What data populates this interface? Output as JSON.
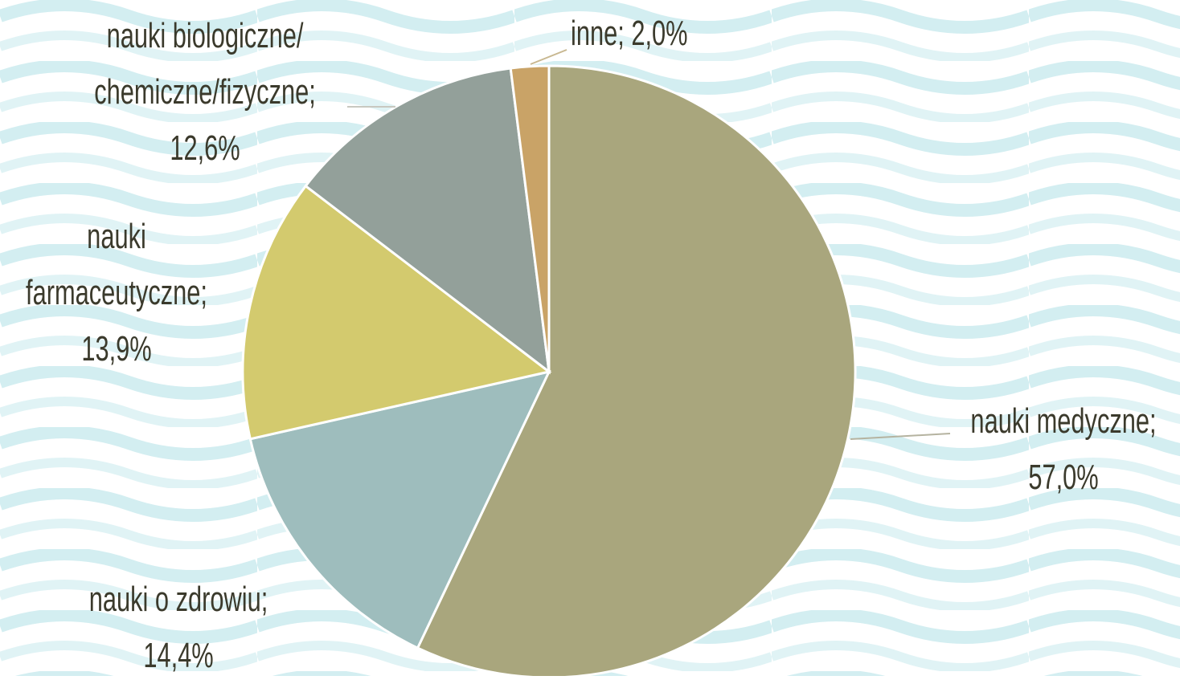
{
  "chart_data": {
    "type": "pie",
    "categories": [
      "nauki medyczne;",
      "nauki o zdrowiu;",
      "nauki farmaceutyczne;",
      "nauki biologiczne/ chemiczne/fizyczne;",
      "inne;"
    ],
    "values": [
      57.0,
      14.4,
      13.9,
      12.6,
      2.0
    ],
    "value_labels": [
      "57,0%",
      "14,4%",
      "13,9%",
      "12,6%",
      "2,0%"
    ],
    "colors": [
      "#a9a67d",
      "#9ebdbd",
      "#d3ca6e",
      "#93a09a",
      "#c9a367"
    ]
  }
}
